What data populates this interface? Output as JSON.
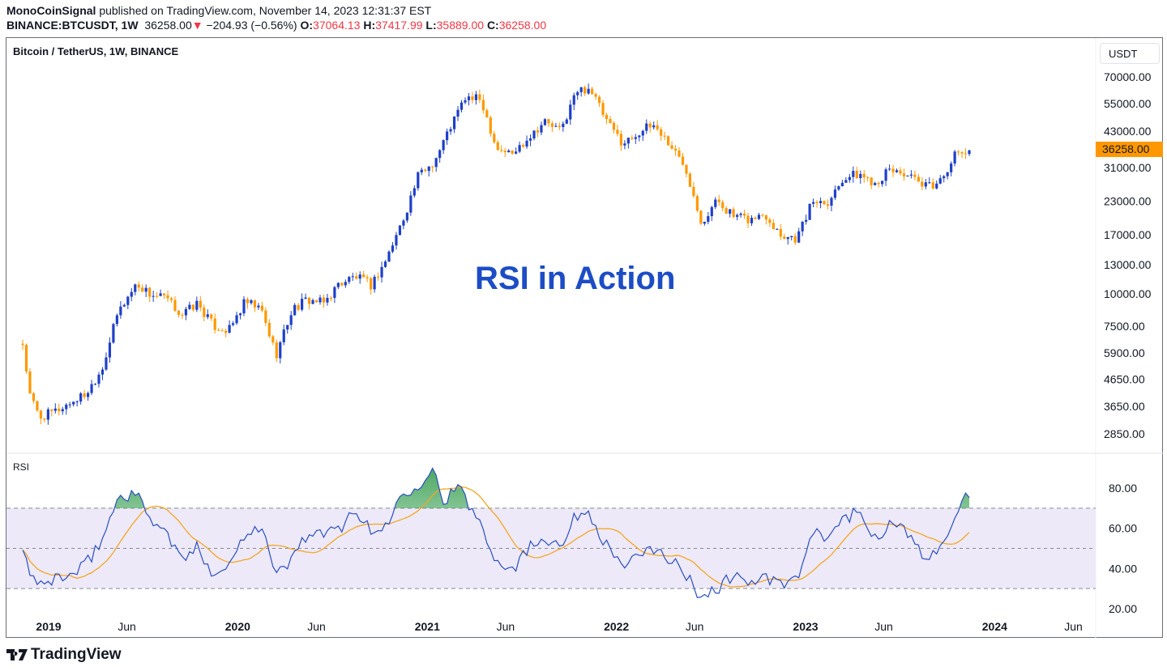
{
  "header": {
    "author": "MonoCoinSignal",
    "published": "published on TradingView.com, November 14, 2023 12:31:37 EST",
    "symbol": "BINANCE:BTCUSDT, 1W",
    "last": "36258.00",
    "change": "−204.93 (−0.56%)",
    "open_label": "O:",
    "open": "37064.13",
    "high_label": "H:",
    "high": "37417.99",
    "low_label": "L:",
    "low": "35889.00",
    "close_label": "C:",
    "close": "36258.00",
    "direction_icon": "triangle-down-icon"
  },
  "chart": {
    "symbol_title": "Bitcoin / TetherUS, 1W, BINANCE",
    "currency_button": "USDT",
    "overlay_title": "RSI in Action",
    "current_price_tag": "36258.00",
    "price_axis_labels": [
      "70000.00",
      "55000.00",
      "43000.00",
      "31000.00",
      "23000.00",
      "17000.00",
      "13000.00",
      "10000.00",
      "7500.00",
      "5900.00",
      "4650.00",
      "3650.00",
      "2850.00"
    ],
    "time_axis_labels": [
      {
        "text": "2019",
        "bold": true
      },
      {
        "text": "Jun",
        "bold": false
      },
      {
        "text": "2020",
        "bold": true
      },
      {
        "text": "Jun",
        "bold": false
      },
      {
        "text": "2021",
        "bold": true
      },
      {
        "text": "Jun",
        "bold": false
      },
      {
        "text": "2022",
        "bold": true
      },
      {
        "text": "Jun",
        "bold": false
      },
      {
        "text": "2023",
        "bold": true
      },
      {
        "text": "Jun",
        "bold": false
      },
      {
        "text": "2024",
        "bold": true
      },
      {
        "text": "Jun",
        "bold": false
      }
    ],
    "colors": {
      "up": "#1e40c8",
      "down": "#ff9800",
      "rsi": "#2a4fc2",
      "rsi_ma": "#f5a623",
      "band": "#ede9f8",
      "overbought_fill": "#2e9a48",
      "price_tag": "#ff9800"
    }
  },
  "rsi": {
    "label": "RSI",
    "axis_labels": [
      "80.00",
      "60.00",
      "40.00",
      "20.00"
    ],
    "levels": [
      70,
      50,
      30
    ]
  },
  "chart_data": [
    {
      "type": "candlestick",
      "scale": "log",
      "interval": "1W",
      "ylim": [
        2850,
        70000
      ],
      "approx_closes": [
        [
          "2018-11-12",
          6400
        ],
        [
          "2018-11-26",
          4000
        ],
        [
          "2018-12-15",
          3300
        ],
        [
          "2019-01-15",
          3500
        ],
        [
          "2019-02-15",
          3800
        ],
        [
          "2019-03-15",
          4100
        ],
        [
          "2019-04-15",
          5200
        ],
        [
          "2019-05-15",
          8500
        ],
        [
          "2019-06-20",
          11000
        ],
        [
          "2019-07-15",
          10000
        ],
        [
          "2019-08-15",
          9600
        ],
        [
          "2019-09-15",
          8300
        ],
        [
          "2019-10-15",
          9200
        ],
        [
          "2019-11-15",
          7500
        ],
        [
          "2019-12-15",
          7200
        ],
        [
          "2020-01-15",
          9300
        ],
        [
          "2020-02-15",
          8700
        ],
        [
          "2020-03-15",
          5800
        ],
        [
          "2020-04-15",
          8700
        ],
        [
          "2020-05-15",
          9500
        ],
        [
          "2020-06-15",
          9200
        ],
        [
          "2020-07-15",
          11000
        ],
        [
          "2020-08-15",
          11700
        ],
        [
          "2020-09-15",
          10800
        ],
        [
          "2020-10-15",
          13800
        ],
        [
          "2020-11-15",
          19500
        ],
        [
          "2020-12-15",
          29000
        ],
        [
          "2021-01-15",
          33000
        ],
        [
          "2021-02-15",
          45000
        ],
        [
          "2021-03-15",
          58000
        ],
        [
          "2021-04-15",
          57000
        ],
        [
          "2021-05-15",
          37000
        ],
        [
          "2021-06-15",
          35000
        ],
        [
          "2021-07-15",
          41000
        ],
        [
          "2021-08-15",
          47000
        ],
        [
          "2021-09-15",
          43000
        ],
        [
          "2021-10-15",
          61000
        ],
        [
          "2021-11-10",
          64000
        ],
        [
          "2021-12-15",
          46000
        ],
        [
          "2022-01-15",
          38500
        ],
        [
          "2022-02-15",
          43000
        ],
        [
          "2022-03-15",
          45500
        ],
        [
          "2022-04-15",
          38000
        ],
        [
          "2022-05-15",
          31000
        ],
        [
          "2022-06-15",
          19000
        ],
        [
          "2022-07-15",
          23300
        ],
        [
          "2022-08-15",
          20000
        ],
        [
          "2022-09-15",
          19400
        ],
        [
          "2022-10-15",
          20500
        ],
        [
          "2022-11-15",
          17000
        ],
        [
          "2022-12-15",
          16500
        ],
        [
          "2023-01-15",
          23100
        ],
        [
          "2023-02-15",
          23100
        ],
        [
          "2023-03-15",
          28500
        ],
        [
          "2023-04-15",
          29200
        ],
        [
          "2023-05-15",
          27200
        ],
        [
          "2023-06-15",
          30500
        ],
        [
          "2023-07-15",
          29200
        ],
        [
          "2023-08-15",
          26000
        ],
        [
          "2023-09-15",
          27000
        ],
        [
          "2023-10-15",
          34500
        ],
        [
          "2023-11-13",
          36258
        ]
      ]
    },
    {
      "type": "line",
      "name": "RSI",
      "ylim": [
        20,
        90
      ],
      "approx_values": [
        [
          "2018-11-12",
          46
        ],
        [
          "2018-12-15",
          30
        ],
        [
          "2019-01-15",
          36
        ],
        [
          "2019-02-15",
          36
        ],
        [
          "2019-03-15",
          42
        ],
        [
          "2019-04-15",
          55
        ],
        [
          "2019-05-15",
          75
        ],
        [
          "2019-06-15",
          78
        ],
        [
          "2019-07-15",
          66
        ],
        [
          "2019-08-15",
          58
        ],
        [
          "2019-09-15",
          44
        ],
        [
          "2019-10-15",
          50
        ],
        [
          "2019-11-15",
          38
        ],
        [
          "2019-12-15",
          41
        ],
        [
          "2020-01-15",
          58
        ],
        [
          "2020-02-15",
          62
        ],
        [
          "2020-03-15",
          36
        ],
        [
          "2020-04-15",
          45
        ],
        [
          "2020-05-15",
          58
        ],
        [
          "2020-06-15",
          56
        ],
        [
          "2020-07-15",
          60
        ],
        [
          "2020-08-15",
          70
        ],
        [
          "2020-09-15",
          57
        ],
        [
          "2020-10-15",
          62
        ],
        [
          "2020-11-15",
          78
        ],
        [
          "2020-12-15",
          82
        ],
        [
          "2021-01-10",
          90
        ],
        [
          "2021-02-01",
          74
        ],
        [
          "2021-03-01",
          80
        ],
        [
          "2021-04-15",
          62
        ],
        [
          "2021-05-15",
          44
        ],
        [
          "2021-06-15",
          40
        ],
        [
          "2021-07-15",
          50
        ],
        [
          "2021-08-15",
          56
        ],
        [
          "2021-09-15",
          52
        ],
        [
          "2021-10-15",
          66
        ],
        [
          "2021-11-10",
          68
        ],
        [
          "2021-12-15",
          50
        ],
        [
          "2022-01-15",
          42
        ],
        [
          "2022-02-15",
          45
        ],
        [
          "2022-03-15",
          50
        ],
        [
          "2022-04-15",
          45
        ],
        [
          "2022-05-15",
          36
        ],
        [
          "2022-06-15",
          26
        ],
        [
          "2022-07-15",
          30
        ],
        [
          "2022-08-15",
          37
        ],
        [
          "2022-09-15",
          33
        ],
        [
          "2022-10-15",
          35
        ],
        [
          "2022-11-15",
          32
        ],
        [
          "2022-12-15",
          34
        ],
        [
          "2023-01-15",
          57
        ],
        [
          "2023-02-15",
          55
        ],
        [
          "2023-03-15",
          66
        ],
        [
          "2023-04-15",
          67
        ],
        [
          "2023-05-15",
          56
        ],
        [
          "2023-06-15",
          62
        ],
        [
          "2023-07-15",
          58
        ],
        [
          "2023-08-15",
          46
        ],
        [
          "2023-09-15",
          48
        ],
        [
          "2023-10-20",
          70
        ],
        [
          "2023-11-06",
          75
        ],
        [
          "2023-11-13",
          72
        ]
      ]
    }
  ]
}
